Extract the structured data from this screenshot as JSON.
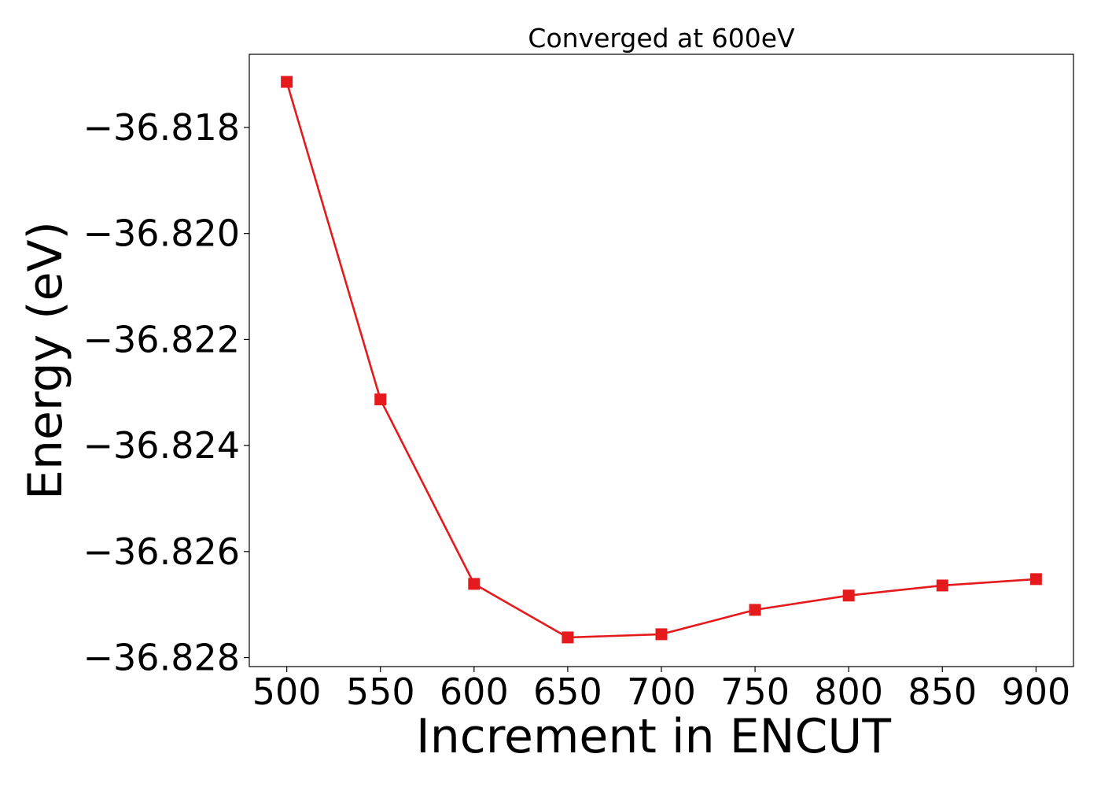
{
  "chart_data": {
    "type": "line",
    "title": "Converged at 600eV",
    "xlabel": "Increment in ENCUT",
    "ylabel": "Energy (eV)",
    "x": [
      500,
      550,
      600,
      650,
      700,
      750,
      800,
      850,
      900
    ],
    "series": [
      {
        "values": [
          -36.81714,
          -36.82313,
          -36.82661,
          -36.82762,
          -36.82756,
          -36.8271,
          -36.82683,
          -36.82664,
          -36.82652
        ],
        "color": "#e41a1c",
        "marker": "square"
      }
    ],
    "xticks": [
      500,
      550,
      600,
      650,
      700,
      750,
      800,
      850,
      900
    ],
    "xtick_labels": [
      "500",
      "550",
      "600",
      "650",
      "700",
      "750",
      "800",
      "850",
      "900"
    ],
    "yticks": [
      -36.828,
      -36.826,
      -36.824,
      -36.822,
      -36.82,
      -36.818
    ],
    "ytick_labels": [
      "−36.828",
      "−36.826",
      "−36.824",
      "−36.822",
      "−36.820",
      "−36.818"
    ],
    "xlim": [
      480,
      920
    ],
    "ylim": [
      -36.82817,
      -36.81662
    ],
    "grid": false,
    "legend": "none"
  }
}
